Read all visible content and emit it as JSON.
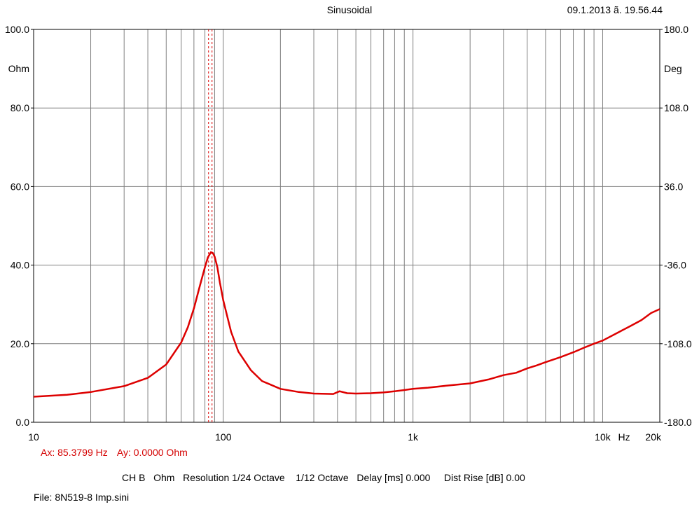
{
  "header": {
    "title": "Sinusoidal",
    "date": "09.1.2013 ã. 19.56.44"
  },
  "chart_data": {
    "type": "line",
    "xscale": "log",
    "xlim": [
      10,
      20000
    ],
    "ylim": [
      0,
      100
    ],
    "y2lim": [
      -180,
      180
    ],
    "y_ticks": [
      "0.0",
      "20.0",
      "40.0",
      "60.0",
      "80.0",
      "100.0"
    ],
    "y_unit": "Ohm",
    "y2_ticks": [
      "-180.0",
      "-108.0",
      "-36.0",
      "36.0",
      "108.0",
      "180.0"
    ],
    "y2_unit": "Deg",
    "x_ticks": [
      {
        "value": 10,
        "label": "10"
      },
      {
        "value": 100,
        "label": "100"
      },
      {
        "value": 1000,
        "label": "1k"
      },
      {
        "value": 10000,
        "label": "10k"
      },
      {
        "value": 20000,
        "label": "20k"
      }
    ],
    "x_unit": "Hz",
    "grid": true,
    "cursor_hz": 85.3799,
    "series": [
      {
        "color": "#dd0000",
        "x": [
          10,
          15,
          20,
          30,
          40,
          50,
          60,
          65,
          70,
          75,
          80,
          83,
          86,
          88,
          90,
          93,
          96,
          100,
          110,
          120,
          140,
          160,
          200,
          250,
          300,
          380,
          410,
          450,
          500,
          600,
          700,
          800,
          900,
          1000,
          1200,
          1500,
          2000,
          2500,
          3000,
          3500,
          4000,
          4500,
          5000,
          6000,
          7000,
          8000,
          9000,
          10000,
          12000,
          14000,
          16000,
          18000,
          20000
        ],
        "y": [
          6.5,
          7.0,
          7.7,
          9.2,
          11.3,
          14.7,
          20.3,
          24.2,
          29.0,
          34.5,
          39.5,
          42.0,
          43.3,
          43.1,
          42.2,
          39.5,
          35.5,
          31.0,
          23.0,
          18.0,
          13.2,
          10.5,
          8.5,
          7.7,
          7.3,
          7.2,
          7.9,
          7.4,
          7.3,
          7.4,
          7.6,
          7.9,
          8.2,
          8.5,
          8.8,
          9.3,
          9.9,
          10.9,
          12.0,
          12.6,
          13.7,
          14.5,
          15.3,
          16.6,
          17.8,
          19.0,
          20.0,
          20.8,
          22.8,
          24.5,
          26.0,
          27.8,
          28.8
        ]
      }
    ]
  },
  "cursor": {
    "ax": "Ax: 85.3799 Hz",
    "ay": "Ay: 0.0000 Ohm"
  },
  "settings": {
    "text": "CH B   Ohm   Resolution 1/24 Octave    1/12 Octave   Delay [ms] 0.000     Dist Rise [dB] 0.00"
  },
  "file": {
    "text": "File: 8N519-8 Imp.sini"
  }
}
